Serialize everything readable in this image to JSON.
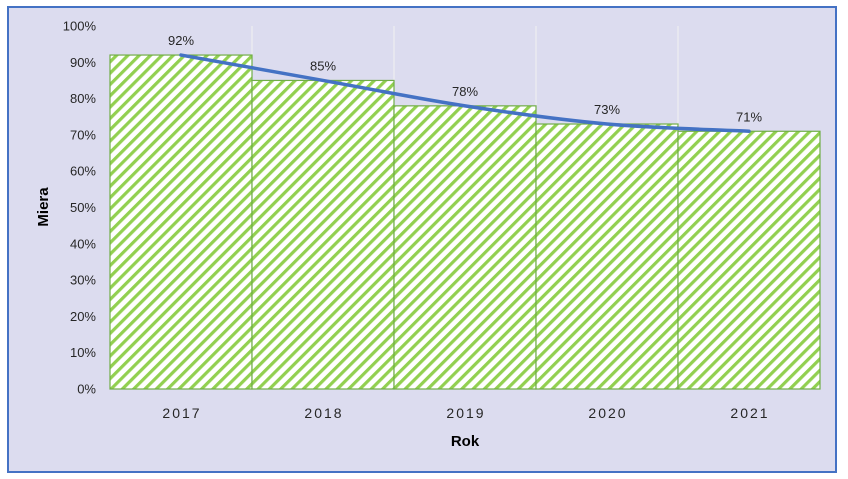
{
  "chart_data": {
    "type": "bar",
    "categories": [
      "2017",
      "2018",
      "2019",
      "2020",
      "2021"
    ],
    "values": [
      92,
      85,
      78,
      73,
      71
    ],
    "data_labels": [
      "92%",
      "85%",
      "78%",
      "73%",
      "71%"
    ],
    "xlabel": "Rok",
    "ylabel": "Miera",
    "ylim": [
      0,
      100
    ],
    "yticks": [
      "0%",
      "10%",
      "20%",
      "30%",
      "40%",
      "50%",
      "60%",
      "70%",
      "80%",
      "90%",
      "100%"
    ],
    "grid": "vertical",
    "legend": "none",
    "trendline": "smooth curve through bar tops",
    "colors": {
      "bar_fill": "#92d050",
      "bar_border": "#70ad47",
      "trendline": "#4472c4",
      "background": "#dcdcef",
      "frame": "#4472c4"
    }
  }
}
